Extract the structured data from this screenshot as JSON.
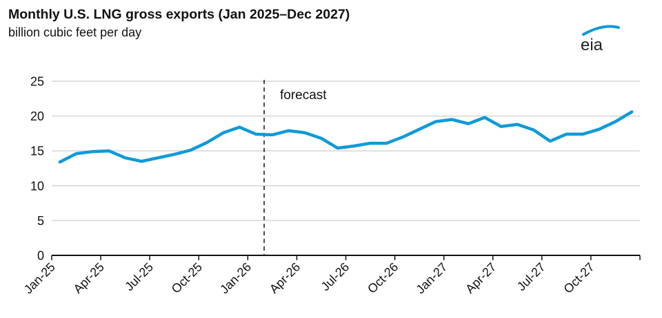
{
  "header": {
    "title": "Monthly U.S. LNG gross exports (Jan 2025–Dec 2027)",
    "subtitle": "billion cubic feet per day",
    "logo_text": "eia"
  },
  "chart_data": {
    "type": "line",
    "title": "Monthly U.S. LNG gross exports (Jan 2025–Dec 2027)",
    "ylabel": "billion cubic feet per day",
    "xlabel": "",
    "ylim": [
      0,
      25
    ],
    "yticks": [
      0,
      5,
      10,
      15,
      20,
      25
    ],
    "xtick_labels": [
      "Jan-25",
      "Apr-25",
      "Jul-25",
      "Oct-25",
      "Jan-26",
      "Apr-26",
      "Jul-26",
      "Oct-26",
      "Jan-27",
      "Apr-27",
      "Jul-27",
      "Oct-27"
    ],
    "grid": true,
    "line_color": "#0f9ad8",
    "forecast_start": "Feb-26",
    "annotation": "forecast",
    "x": [
      "Jan-25",
      "Feb-25",
      "Mar-25",
      "Apr-25",
      "May-25",
      "Jun-25",
      "Jul-25",
      "Aug-25",
      "Sep-25",
      "Oct-25",
      "Nov-25",
      "Dec-25",
      "Jan-26",
      "Feb-26",
      "Mar-26",
      "Apr-26",
      "May-26",
      "Jun-26",
      "Jul-26",
      "Aug-26",
      "Sep-26",
      "Oct-26",
      "Nov-26",
      "Dec-26",
      "Jan-27",
      "Feb-27",
      "Mar-27",
      "Apr-27",
      "May-27",
      "Jun-27",
      "Jul-27",
      "Aug-27",
      "Sep-27",
      "Oct-27",
      "Nov-27",
      "Dec-27"
    ],
    "values": [
      13.4,
      14.6,
      14.9,
      15.0,
      14.0,
      13.5,
      14.0,
      14.5,
      15.1,
      16.2,
      17.6,
      18.4,
      17.4,
      17.3,
      17.9,
      17.6,
      16.8,
      15.4,
      15.7,
      16.1,
      16.1,
      17.0,
      18.1,
      19.2,
      19.5,
      18.9,
      19.8,
      18.5,
      18.8,
      18.0,
      16.4,
      17.4,
      17.4,
      18.1,
      19.2,
      20.6
    ]
  }
}
